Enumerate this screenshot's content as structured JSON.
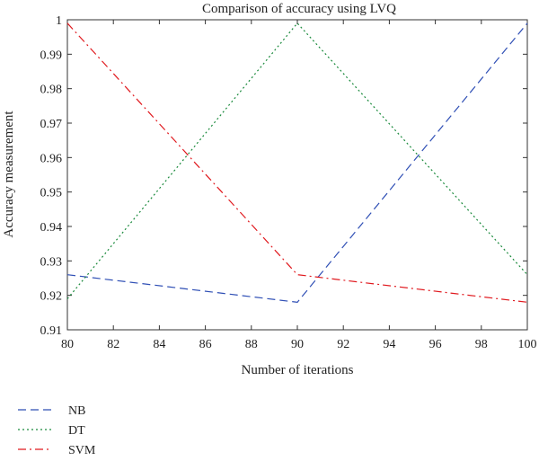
{
  "chart_data": {
    "type": "line",
    "title": "Comparison of accuracy using LVQ",
    "xlabel": "Number of iterations",
    "ylabel": "Accuracy measurement",
    "xlim": [
      80,
      100
    ],
    "ylim": [
      0.91,
      1
    ],
    "xticks": [
      80,
      82,
      84,
      86,
      88,
      90,
      92,
      94,
      96,
      98,
      100
    ],
    "yticks": [
      0.91,
      0.92,
      0.93,
      0.94,
      0.95,
      0.96,
      0.97,
      0.98,
      0.99,
      1
    ],
    "ytick_labels": [
      "0.91",
      "0.92",
      "0.93",
      "0.94",
      "0.95",
      "0.96",
      "0.97",
      "0.98",
      "0.99",
      "1"
    ],
    "grid": false,
    "legend_position": "below-left",
    "x": [
      80,
      90,
      100
    ],
    "series": [
      {
        "name": "NB",
        "values": [
          0.926,
          0.918,
          0.999
        ],
        "color": "#2f4fb5",
        "style": "dashed"
      },
      {
        "name": "DT",
        "values": [
          0.919,
          0.999,
          0.926
        ],
        "color": "#1a8a3c",
        "style": "dotted"
      },
      {
        "name": "SVM",
        "values": [
          0.999,
          0.926,
          0.918
        ],
        "color": "#e0191e",
        "style": "dashdot"
      }
    ]
  }
}
